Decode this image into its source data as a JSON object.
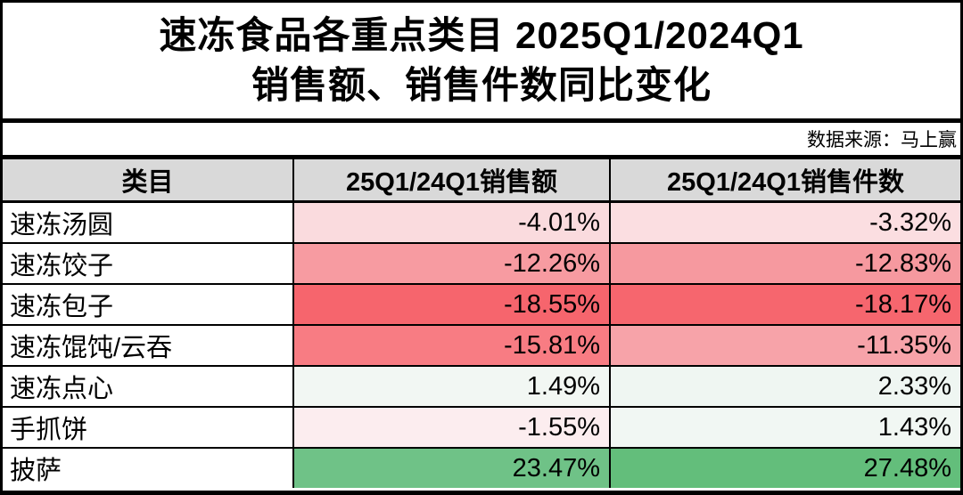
{
  "title": {
    "line1": "速冻食品各重点类目 2025Q1/2024Q1",
    "line2": "销售额、销售件数同比变化"
  },
  "source_note": "数据来源：马上赢",
  "colors": {
    "header_bg": "#D9D9D9",
    "border": "#000000",
    "scale_min_red": "#F8696B",
    "scale_mid_white": "#FCFCFF",
    "scale_max_green": "#63BE7B"
  },
  "chart_data": {
    "type": "table",
    "title": "速冻食品各重点类目 2025Q1/2024Q1 销售额、销售件数同比变化",
    "columns": [
      "类目",
      "25Q1/24Q1销售额",
      "25Q1/24Q1销售件数"
    ],
    "conditional_format": "3-color scale per cell: red = most negative, white = near zero, green = most positive",
    "rows": [
      {
        "category": "速冻汤圆",
        "sales_display": "-4.01%",
        "sales_value": -4.01,
        "sales_bg": "#FADBDE",
        "units_display": "-3.32%",
        "units_value": -3.32,
        "units_bg": "#FBDEE1"
      },
      {
        "category": "速冻饺子",
        "sales_display": "-12.26%",
        "sales_value": -12.26,
        "sales_bg": "#F79BA1",
        "units_display": "-12.83%",
        "units_value": -12.83,
        "units_bg": "#F6999F"
      },
      {
        "category": "速冻包子",
        "sales_display": "-18.55%",
        "sales_value": -18.55,
        "sales_bg": "#F6656D",
        "units_display": "-18.17%",
        "units_value": -18.17,
        "units_bg": "#F6666E"
      },
      {
        "category": "速冻馄饨/云吞",
        "sales_display": "-15.81%",
        "sales_value": -15.81,
        "sales_bg": "#F87C83",
        "units_display": "-11.35%",
        "units_value": -11.35,
        "units_bg": "#F7A3A9"
      },
      {
        "category": "速冻点心",
        "sales_display": "1.49%",
        "sales_value": 1.49,
        "sales_bg": "#F2F7F3",
        "units_display": "2.33%",
        "units_value": 2.33,
        "units_bg": "#EFF6F2"
      },
      {
        "category": "手抓饼",
        "sales_display": "-1.55%",
        "sales_value": -1.55,
        "sales_bg": "#FCEDEF",
        "units_display": "1.43%",
        "units_value": 1.43,
        "units_bg": "#F1F7F3"
      },
      {
        "category": "披萨",
        "sales_display": "23.47%",
        "sales_value": 23.47,
        "sales_bg": "#6FC287",
        "units_display": "27.48%",
        "units_value": 27.48,
        "units_bg": "#63BE7B"
      }
    ]
  }
}
